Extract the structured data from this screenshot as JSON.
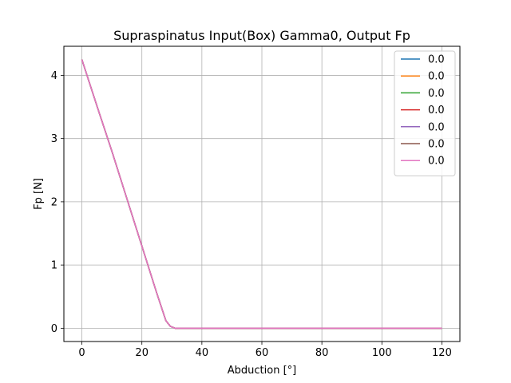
{
  "chart_data": {
    "type": "line",
    "title": "Supraspinatus Input(Box) Gamma0, Output Fp",
    "xlabel": "Abduction [°]",
    "ylabel": "Fp [N]",
    "xlim": [
      -6,
      126
    ],
    "ylim": [
      -0.21,
      4.46
    ],
    "x_ticks": [
      0,
      20,
      40,
      60,
      80,
      100,
      120
    ],
    "y_ticks": [
      0,
      1,
      2,
      3,
      4
    ],
    "grid": true,
    "legend_position": "top-right",
    "series": [
      {
        "name": "0.0",
        "color": "#1f77b4",
        "x": [
          0,
          5,
          10,
          15,
          20,
          25,
          28,
          29.5,
          31,
          40,
          60,
          80,
          100,
          120
        ],
        "y": [
          4.25,
          3.52,
          2.8,
          2.05,
          1.3,
          0.55,
          0.12,
          0.03,
          0.0,
          0.0,
          0.0,
          0.0,
          0.0,
          0.0
        ]
      },
      {
        "name": "0.0",
        "color": "#ff7f0e",
        "x": [
          0,
          5,
          10,
          15,
          20,
          25,
          28,
          29.5,
          31,
          40,
          60,
          80,
          100,
          120
        ],
        "y": [
          4.25,
          3.52,
          2.8,
          2.05,
          1.3,
          0.55,
          0.12,
          0.03,
          0.0,
          0.0,
          0.0,
          0.0,
          0.0,
          0.0
        ]
      },
      {
        "name": "0.0",
        "color": "#2ca02c",
        "x": [
          0,
          5,
          10,
          15,
          20,
          25,
          28,
          29.5,
          31,
          40,
          60,
          80,
          100,
          120
        ],
        "y": [
          4.25,
          3.52,
          2.8,
          2.05,
          1.3,
          0.55,
          0.12,
          0.03,
          0.0,
          0.0,
          0.0,
          0.0,
          0.0,
          0.0
        ]
      },
      {
        "name": "0.0",
        "color": "#d62728",
        "x": [
          0,
          5,
          10,
          15,
          20,
          25,
          28,
          29.5,
          31,
          40,
          60,
          80,
          100,
          120
        ],
        "y": [
          4.25,
          3.52,
          2.8,
          2.05,
          1.3,
          0.55,
          0.12,
          0.03,
          0.0,
          0.0,
          0.0,
          0.0,
          0.0,
          0.0
        ]
      },
      {
        "name": "0.0",
        "color": "#9467bd",
        "x": [
          0,
          5,
          10,
          15,
          20,
          25,
          28,
          29.5,
          31,
          40,
          60,
          80,
          100,
          120
        ],
        "y": [
          4.25,
          3.52,
          2.8,
          2.05,
          1.3,
          0.55,
          0.12,
          0.03,
          0.0,
          0.0,
          0.0,
          0.0,
          0.0,
          0.0
        ]
      },
      {
        "name": "0.0",
        "color": "#8c564b",
        "x": [
          0,
          5,
          10,
          15,
          20,
          25,
          28,
          29.5,
          31,
          40,
          60,
          80,
          100,
          120
        ],
        "y": [
          4.25,
          3.52,
          2.8,
          2.05,
          1.3,
          0.55,
          0.12,
          0.03,
          0.0,
          0.0,
          0.0,
          0.0,
          0.0,
          0.0
        ]
      },
      {
        "name": "0.0",
        "color": "#e377c2",
        "x": [
          0,
          5,
          10,
          15,
          20,
          25,
          28,
          29.5,
          31,
          40,
          60,
          80,
          100,
          120
        ],
        "y": [
          4.25,
          3.52,
          2.8,
          2.05,
          1.3,
          0.55,
          0.12,
          0.03,
          0.0,
          0.0,
          0.0,
          0.0,
          0.0,
          0.0
        ]
      }
    ]
  }
}
